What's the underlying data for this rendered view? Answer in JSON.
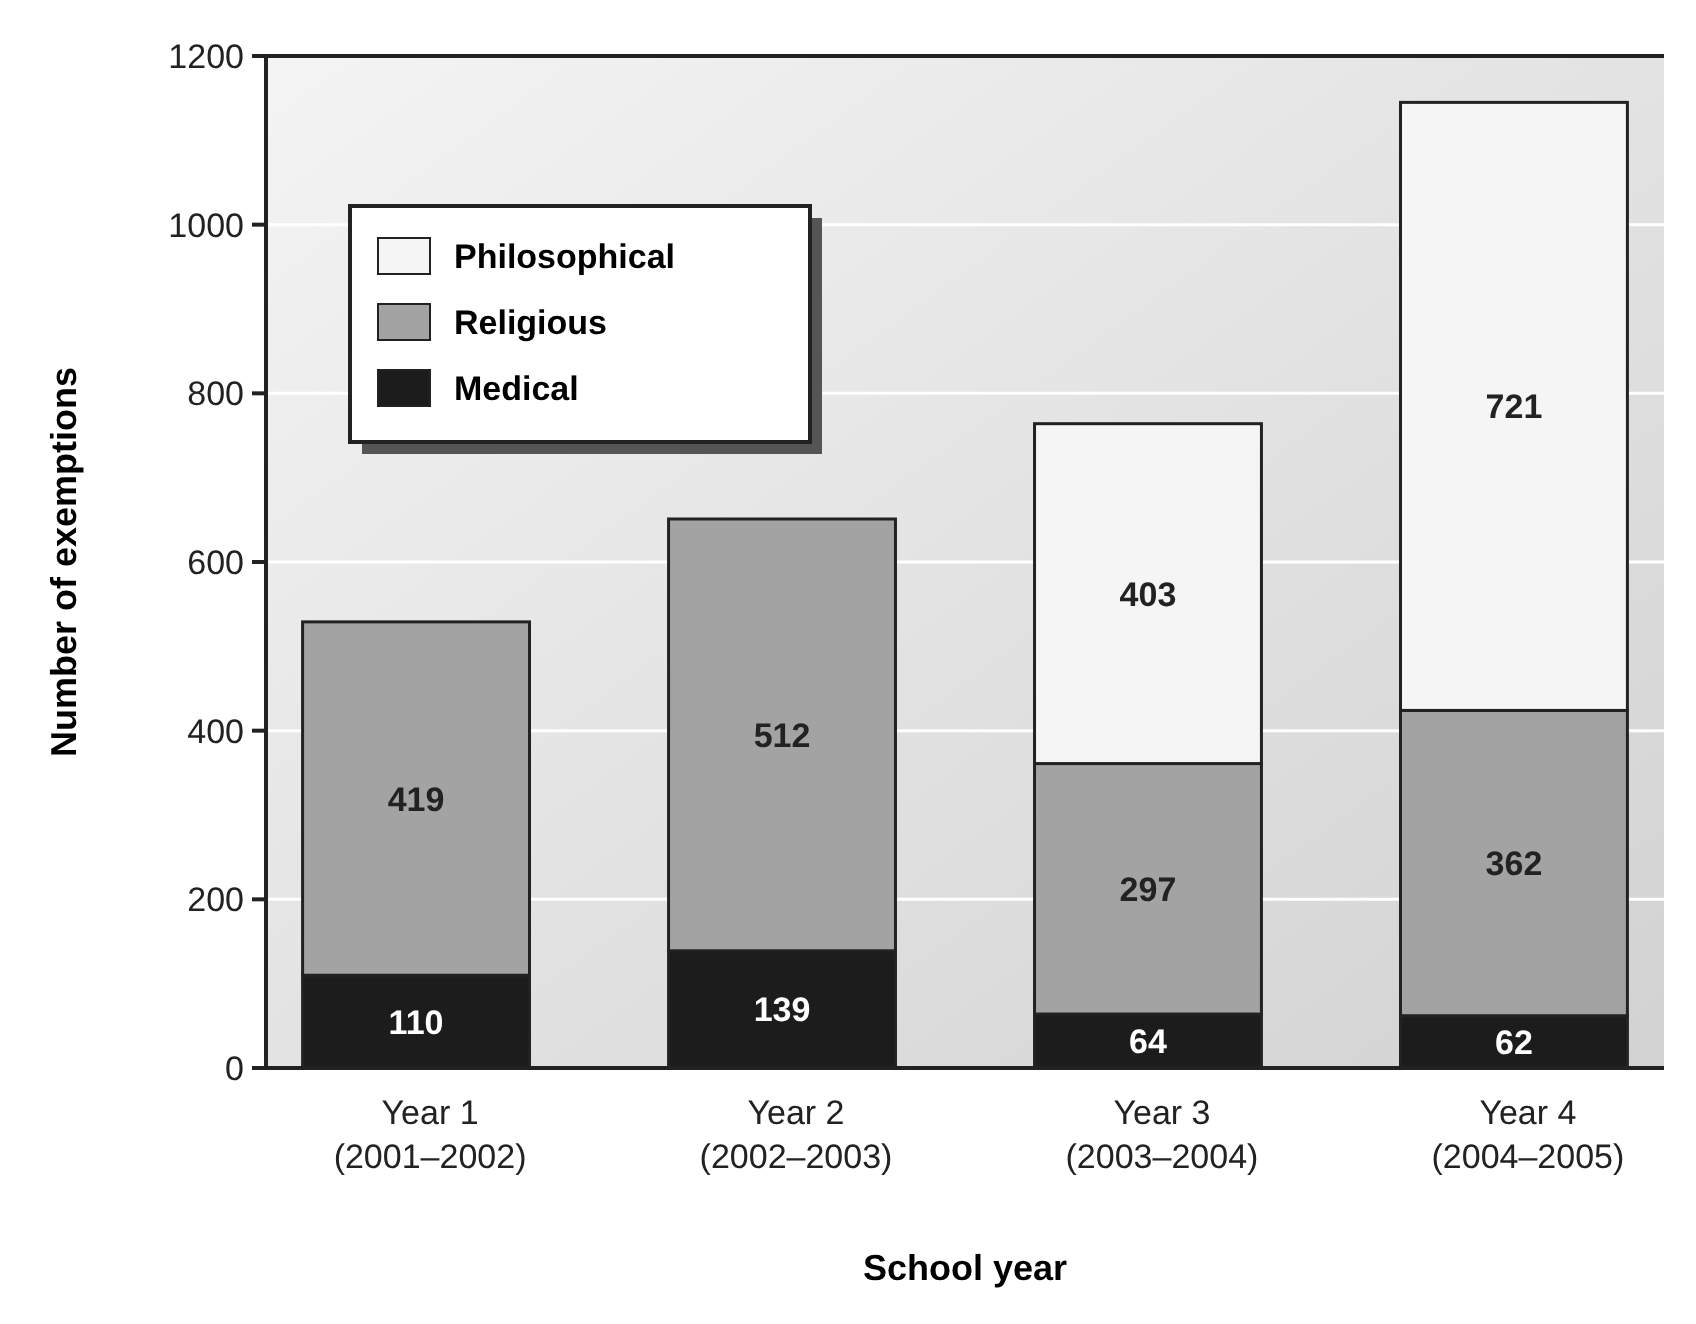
{
  "chart_data": {
    "type": "bar",
    "stacked": true,
    "xlabel": "School year",
    "ylabel": "Number of exemptions",
    "categories": [
      "Year 1\n(2001–2002)",
      "Year 2\n(2002–2003)",
      "Year 3\n(2003–2004)",
      "Year 4\n(2004–2005)"
    ],
    "series": [
      {
        "name": "Medical",
        "color": "#1c1c1c",
        "values": [
          110,
          139,
          64,
          62
        ]
      },
      {
        "name": "Religious",
        "color": "#a3a3a3",
        "values": [
          419,
          512,
          297,
          362
        ]
      },
      {
        "name": "Philosophical",
        "color": "#f5f5f5",
        "values": [
          null,
          null,
          403,
          721
        ]
      }
    ],
    "ylim": [
      0,
      1200
    ],
    "yticks": [
      0,
      200,
      400,
      600,
      800,
      1000,
      1200
    ],
    "grid": "y",
    "legend": "top left",
    "data_labels": true
  }
}
